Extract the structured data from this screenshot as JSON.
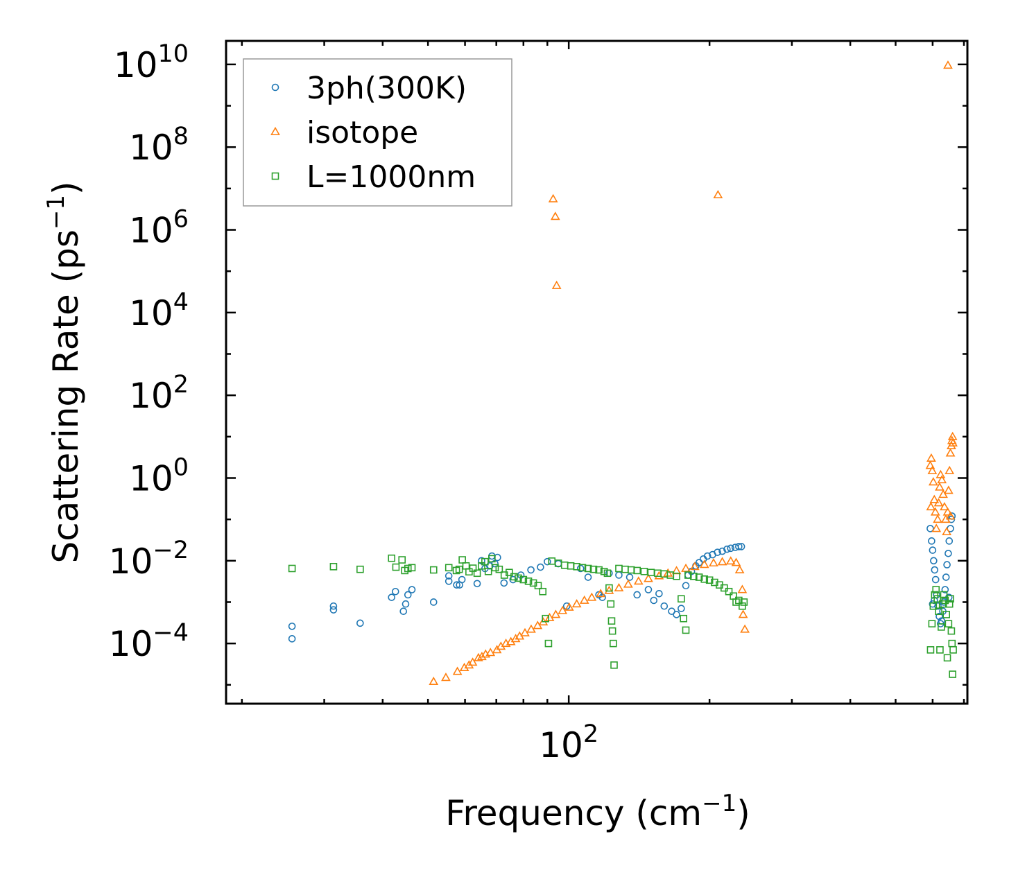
{
  "chart_data": {
    "type": "scatter",
    "xscale": "log",
    "yscale": "log",
    "xlabel": "Frequency (cm",
    "xlabel_sup": "−1",
    "xlabel_end": ")",
    "ylabel": "Scattering Rate (ps",
    "ylabel_sup": "−1",
    "ylabel_end": ")",
    "xlim": [
      18.5,
      712
    ],
    "ylim": [
      3.5e-06,
      37000000000
    ],
    "x_tick_labels": [
      {
        "base": "10",
        "exp": "2",
        "value": 100
      }
    ],
    "y_tick_labels": [
      {
        "base": "10",
        "exp": "10",
        "value": 10000000000
      },
      {
        "base": "10",
        "exp": "8",
        "value": 100000000
      },
      {
        "base": "10",
        "exp": "6",
        "value": 1000000
      },
      {
        "base": "10",
        "exp": "4",
        "value": 10000
      },
      {
        "base": "10",
        "exp": "2",
        "value": 100
      },
      {
        "base": "10",
        "exp": "0",
        "value": 1
      },
      {
        "base": "10",
        "exp": "−2",
        "value": 0.01
      },
      {
        "base": "10",
        "exp": "−4",
        "value": 0.0001
      }
    ],
    "legend_position": "top-left",
    "series": [
      {
        "name": "3ph(300K)",
        "marker": "circle",
        "color": "#1f77b4",
        "points": [
          [
            25.6,
            0.00026
          ],
          [
            25.6,
            0.00013
          ],
          [
            31.4,
            0.0008
          ],
          [
            31.4,
            0.00065
          ],
          [
            35.8,
            0.00031
          ],
          [
            41.8,
            0.0013
          ],
          [
            42.6,
            0.0018
          ],
          [
            44.3,
            0.0006
          ],
          [
            44.8,
            0.0009
          ],
          [
            45.3,
            0.0015
          ],
          [
            46.2,
            0.002
          ],
          [
            51.4,
            0.001
          ],
          [
            55.4,
            0.0043
          ],
          [
            55.4,
            0.0032
          ],
          [
            57.6,
            0.0026
          ],
          [
            58.4,
            0.0026
          ],
          [
            59.1,
            0.0035
          ],
          [
            63.7,
            0.0028
          ],
          [
            65.1,
            0.01
          ],
          [
            66.2,
            0.0065
          ],
          [
            67.8,
            0.0075
          ],
          [
            68.5,
            0.013
          ],
          [
            69.5,
            0.0085
          ],
          [
            70.4,
            0.012
          ],
          [
            72.7,
            0.0029
          ],
          [
            76,
            0.0035
          ],
          [
            79,
            0.0045
          ],
          [
            83,
            0.006
          ],
          [
            87,
            0.007
          ],
          [
            90,
            0.0095
          ],
          [
            95,
            0.0085
          ],
          [
            99,
            0.0008
          ],
          [
            106,
            0.0065
          ],
          [
            110,
            0.004
          ],
          [
            116,
            0.0015
          ],
          [
            118,
            0.0013
          ],
          [
            122,
            0.005
          ],
          [
            128,
            0.0045
          ],
          [
            135,
            0.004
          ],
          [
            140,
            0.0015
          ],
          [
            148,
            0.002
          ],
          [
            152,
            0.0011
          ],
          [
            156,
            0.0016
          ],
          [
            160,
            0.0008
          ],
          [
            166,
            0.0006
          ],
          [
            170,
            0.0005
          ],
          [
            174,
            0.0007
          ],
          [
            178,
            0.0025
          ],
          [
            180,
            0.0045
          ],
          [
            183,
            0.0055
          ],
          [
            187,
            0.0075
          ],
          [
            190,
            0.009
          ],
          [
            194,
            0.011
          ],
          [
            198,
            0.013
          ],
          [
            203,
            0.014
          ],
          [
            208,
            0.016
          ],
          [
            213,
            0.017
          ],
          [
            218,
            0.019
          ],
          [
            222,
            0.02
          ],
          [
            227,
            0.021
          ],
          [
            231,
            0.022
          ],
          [
            234,
            0.022
          ],
          [
            593,
            0.06
          ],
          [
            597,
            0.03
          ],
          [
            600,
            0.018
          ],
          [
            603,
            0.01
          ],
          [
            606,
            0.006
          ],
          [
            609,
            0.0035
          ],
          [
            612,
            0.0015
          ],
          [
            616,
            0.0008
          ],
          [
            620,
            0.00045
          ],
          [
            624,
            0.0003
          ],
          [
            627,
            0.00035
          ],
          [
            631,
            0.0006
          ],
          [
            634,
            0.001
          ],
          [
            638,
            0.002
          ],
          [
            641,
            0.004
          ],
          [
            644,
            0.008
          ],
          [
            648,
            0.015
          ],
          [
            651,
            0.03
          ],
          [
            655,
            0.06
          ],
          [
            658,
            0.1
          ],
          [
            660,
            0.12
          ],
          [
            600,
            0.0009
          ],
          [
            605,
            0.0011
          ],
          [
            650,
            0.0013
          ]
        ]
      },
      {
        "name": "isotope",
        "marker": "triangle",
        "color": "#ff7f0e",
        "points": [
          [
            51.4,
            1.2e-05
          ],
          [
            54.6,
            1.5e-05
          ],
          [
            57.8,
            2.1e-05
          ],
          [
            59.8,
            2.6e-05
          ],
          [
            61.2,
            3e-05
          ],
          [
            62.3,
            3.5e-05
          ],
          [
            64.1,
            4.5e-05
          ],
          [
            65.2,
            4.8e-05
          ],
          [
            66.4,
            5.5e-05
          ],
          [
            68,
            6e-05
          ],
          [
            70.2,
            7e-05
          ],
          [
            71.6,
            8.5e-05
          ],
          [
            73.4,
            0.0001
          ],
          [
            75.2,
            0.00011
          ],
          [
            77,
            0.00013
          ],
          [
            78.5,
            0.00015
          ],
          [
            80.6,
            0.00018
          ],
          [
            83.1,
            0.00022
          ],
          [
            85.8,
            0.00027
          ],
          [
            88.2,
            0.00033
          ],
          [
            91,
            0.00042
          ],
          [
            93.8,
            0.0005
          ],
          [
            97,
            0.00062
          ],
          [
            100.2,
            0.00075
          ],
          [
            104,
            0.0009
          ],
          [
            108,
            0.0011
          ],
          [
            112,
            0.0013
          ],
          [
            117,
            0.0016
          ],
          [
            122,
            0.0019
          ],
          [
            128,
            0.0022
          ],
          [
            134,
            0.0027
          ],
          [
            141,
            0.0032
          ],
          [
            148,
            0.0037
          ],
          [
            156,
            0.0043
          ],
          [
            163,
            0.005
          ],
          [
            170,
            0.0057
          ],
          [
            178,
            0.0065
          ],
          [
            186,
            0.0072
          ],
          [
            195,
            0.0081
          ],
          [
            204,
            0.0088
          ],
          [
            213,
            0.0094
          ],
          [
            222,
            0.0098
          ],
          [
            228,
            0.009
          ],
          [
            232,
            0.006
          ],
          [
            235,
            0.002
          ],
          [
            236,
            0.0005
          ],
          [
            238,
            0.00022
          ],
          [
            92.6,
            5600000
          ],
          [
            93.6,
            2100000
          ],
          [
            94.2,
            45000
          ],
          [
            208.5,
            7000000
          ],
          [
            647,
            9500000000
          ],
          [
            593,
            2
          ],
          [
            596,
            3
          ],
          [
            599,
            1.5
          ],
          [
            602,
            0.8
          ],
          [
            605,
            0.3
          ],
          [
            608,
            0.15
          ],
          [
            611,
            0.06
          ],
          [
            615,
            0.1
          ],
          [
            618,
            0.25
          ],
          [
            621,
            0.6
          ],
          [
            624,
            1.2
          ],
          [
            628,
            0.9
          ],
          [
            632,
            0.4
          ],
          [
            636,
            0.2
          ],
          [
            640,
            0.1
          ],
          [
            643,
            0.05
          ],
          [
            646,
            0.15
          ],
          [
            649,
            0.5
          ],
          [
            652,
            1.5
          ],
          [
            655,
            4
          ],
          [
            658,
            6
          ],
          [
            660,
            8
          ],
          [
            662,
            10
          ],
          [
            663,
            7
          ],
          [
            595,
            0.2
          ],
          [
            655,
            0.12
          ]
        ]
      },
      {
        "name": "L=1000nm",
        "marker": "square",
        "color": "#2ca02c",
        "points": [
          [
            25.6,
            0.0065
          ],
          [
            31.4,
            0.0072
          ],
          [
            35.8,
            0.0062
          ],
          [
            41.8,
            0.0115
          ],
          [
            42.7,
            0.007
          ],
          [
            44,
            0.0105
          ],
          [
            44.6,
            0.0058
          ],
          [
            45.3,
            0.0065
          ],
          [
            46.2,
            0.0068
          ],
          [
            51.4,
            0.006
          ],
          [
            55.4,
            0.0068
          ],
          [
            57.5,
            0.0058
          ],
          [
            58.3,
            0.0062
          ],
          [
            59.2,
            0.0105
          ],
          [
            60.3,
            0.0075
          ],
          [
            61.2,
            0.0054
          ],
          [
            62.4,
            0.0066
          ],
          [
            63.7,
            0.005
          ],
          [
            65.1,
            0.0075
          ],
          [
            66.2,
            0.0095
          ],
          [
            67.3,
            0.0055
          ],
          [
            68.5,
            0.0112
          ],
          [
            69.6,
            0.0068
          ],
          [
            71,
            0.0062
          ],
          [
            72.8,
            0.0045
          ],
          [
            74.6,
            0.0052
          ],
          [
            76.4,
            0.0041
          ],
          [
            78,
            0.0038
          ],
          [
            80,
            0.0035
          ],
          [
            82,
            0.0032
          ],
          [
            84,
            0.0029
          ],
          [
            86,
            0.0025
          ],
          [
            88,
            0.0018
          ],
          [
            89.2,
            0.0004
          ],
          [
            90.5,
            0.0001
          ],
          [
            92,
            0.0098
          ],
          [
            95,
            0.0087
          ],
          [
            98,
            0.0078
          ],
          [
            101,
            0.0075
          ],
          [
            104,
            0.0072
          ],
          [
            107,
            0.0068
          ],
          [
            110,
            0.0065
          ],
          [
            113,
            0.0062
          ],
          [
            116,
            0.006
          ],
          [
            119,
            0.0055
          ],
          [
            121,
            0.005
          ],
          [
            122,
            0.0022
          ],
          [
            123,
            0.0009
          ],
          [
            123.5,
            0.00035
          ],
          [
            124,
            0.0002
          ],
          [
            124.5,
            0.0001
          ],
          [
            125,
            3e-05
          ],
          [
            128,
            0.0065
          ],
          [
            132,
            0.0062
          ],
          [
            136,
            0.006
          ],
          [
            140,
            0.0058
          ],
          [
            145,
            0.0055
          ],
          [
            150,
            0.0052
          ],
          [
            155,
            0.005
          ],
          [
            160,
            0.0048
          ],
          [
            165,
            0.0045
          ],
          [
            170,
            0.0042
          ],
          [
            174,
            0.0012
          ],
          [
            176,
            0.0004
          ],
          [
            178,
            0.00021
          ],
          [
            180,
            0.0045
          ],
          [
            185,
            0.0042
          ],
          [
            190,
            0.004
          ],
          [
            195,
            0.0036
          ],
          [
            200,
            0.0034
          ],
          [
            205,
            0.003
          ],
          [
            210,
            0.0026
          ],
          [
            215,
            0.0022
          ],
          [
            220,
            0.0018
          ],
          [
            225,
            0.0014
          ],
          [
            228,
            0.001
          ],
          [
            231,
            0.0011
          ],
          [
            235,
            0.0008
          ],
          [
            237,
            0.001
          ],
          [
            594,
            7e-05
          ],
          [
            598,
            0.0003
          ],
          [
            602,
            0.0008
          ],
          [
            606,
            0.0015
          ],
          [
            610,
            0.002
          ],
          [
            614,
            0.0012
          ],
          [
            618,
            0.0006
          ],
          [
            622,
            7e-05
          ],
          [
            626,
            0.00025
          ],
          [
            630,
            0.0009
          ],
          [
            634,
            0.0015
          ],
          [
            638,
            0.0011
          ],
          [
            642,
            0.0005
          ],
          [
            645,
            4.5e-05
          ],
          [
            649,
            0.0003
          ],
          [
            652,
            0.0009
          ],
          [
            655,
            0.0012
          ],
          [
            658,
            0.0002
          ],
          [
            660,
            0.0001
          ],
          [
            662,
            1.8e-05
          ],
          [
            664,
            7e-05
          ]
        ]
      }
    ]
  }
}
